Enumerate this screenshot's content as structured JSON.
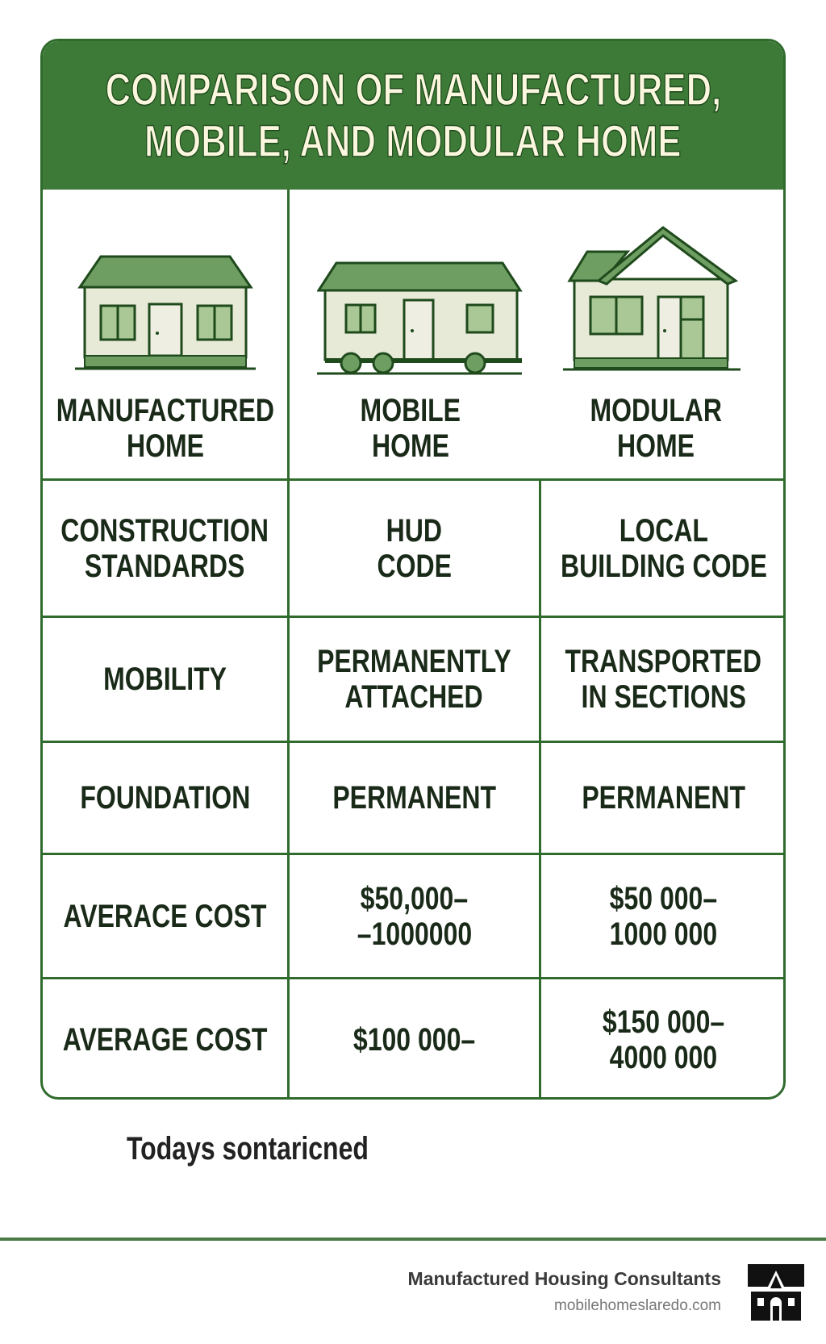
{
  "title": {
    "line1": "COMPARISON OF MANUFACTURED,",
    "line2": "MOBILE, AND MODULAR HOME"
  },
  "colors": {
    "header": "#3d7a37",
    "border": "#2f6b2c",
    "roof": "#6e9e62",
    "wall": "#e8ead8",
    "window": "#a9c896",
    "title_text": "#fbf7df"
  },
  "home_types": [
    {
      "icon": "manufactured-house-icon",
      "line1": "MANUFACTURED",
      "line2": "HOME"
    },
    {
      "icon": "mobile-home-icon",
      "line1": "MOBILE",
      "line2": "HOME"
    },
    {
      "icon": "modular-house-icon",
      "line1": "MODULAR",
      "line2": "HOME"
    }
  ],
  "rows": [
    {
      "label": [
        "CONSTRUCTION",
        "STANDARDS"
      ],
      "col2": [
        "HUD",
        "CODE"
      ],
      "col3": [
        "LOCAL",
        "BUILDING CODE"
      ]
    },
    {
      "label": [
        "MOBILITY"
      ],
      "col2": [
        "PERMANENTLY",
        "ATTACHED"
      ],
      "col3": [
        "TRANSPORTED",
        "IN SECTIONS"
      ]
    },
    {
      "label": [
        "FOUNDATION"
      ],
      "col2": [
        "PERMANENT"
      ],
      "col3": [
        "PERMANENT"
      ]
    },
    {
      "label": [
        "AVERACE COST"
      ],
      "col2": [
        "$50,000–",
        "–1000000"
      ],
      "col3": [
        "$50 000–",
        "1000 000"
      ]
    },
    {
      "label": [
        "AVERAGE COST"
      ],
      "col2": [
        "$100 000–"
      ],
      "col3": [
        "$150 000–",
        "4000 000"
      ]
    }
  ],
  "footnote": "Todays sontaricned",
  "footer": {
    "brand": "Manufactured Housing Consultants",
    "site": "mobilehomeslaredo.com",
    "logo_icon": "house-logo-icon"
  }
}
